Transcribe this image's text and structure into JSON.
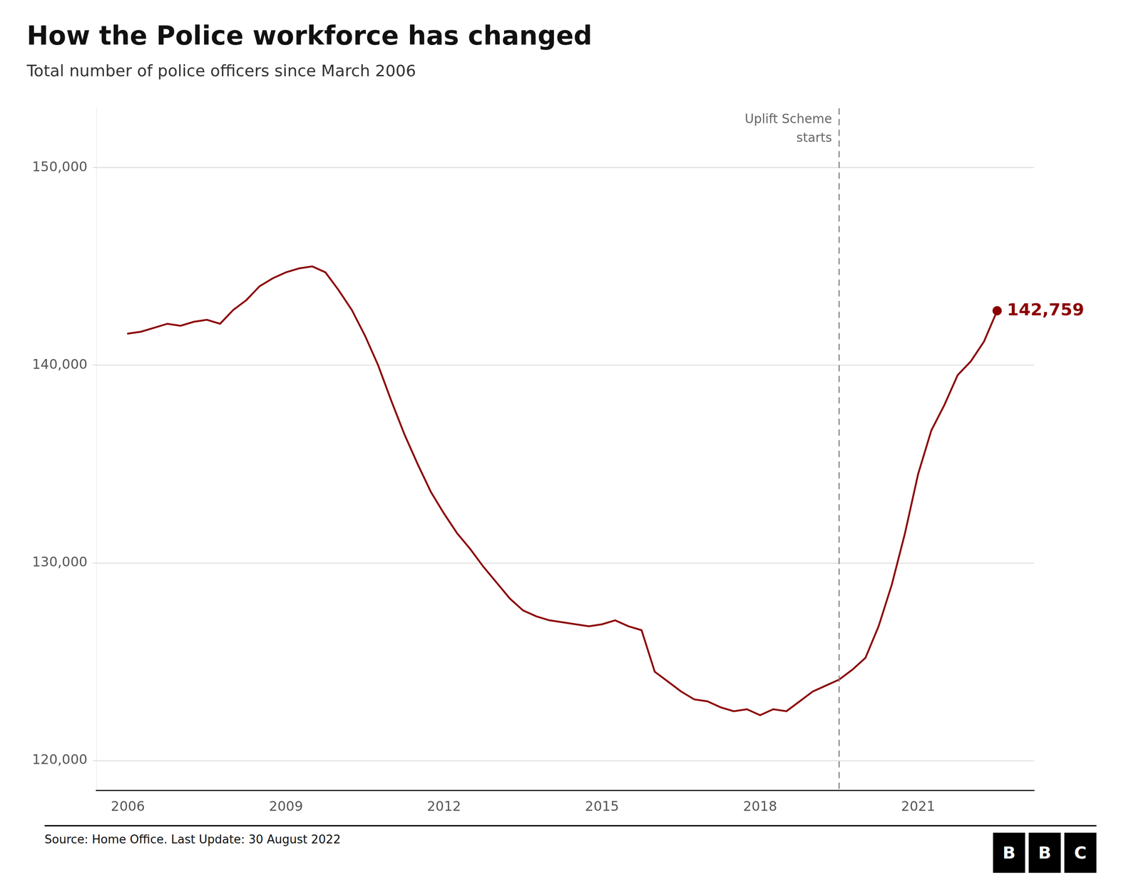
{
  "chart_data": {
    "type": "line",
    "title": "How the Police workforce has changed",
    "subtitle": "Total number of police officers since March 2006",
    "source": "Source: Home Office. Last Update: 30 August 2022",
    "logo": "BBC",
    "color": "#8B0000",
    "x": [
      2006.0,
      2006.25,
      2006.5,
      2006.75,
      2007.0,
      2007.25,
      2007.5,
      2007.75,
      2008.0,
      2008.25,
      2008.5,
      2008.75,
      2009.0,
      2009.25,
      2009.5,
      2009.75,
      2010.0,
      2010.25,
      2010.5,
      2010.75,
      2011.0,
      2011.25,
      2011.5,
      2011.75,
      2012.0,
      2012.25,
      2012.5,
      2012.75,
      2013.0,
      2013.25,
      2013.5,
      2013.75,
      2014.0,
      2014.25,
      2014.5,
      2014.75,
      2015.0,
      2015.25,
      2015.5,
      2015.75,
      2016.0,
      2016.25,
      2016.5,
      2016.75,
      2017.0,
      2017.25,
      2017.5,
      2017.75,
      2018.0,
      2018.25,
      2018.5,
      2018.75,
      2019.0,
      2019.25,
      2019.5,
      2019.75,
      2020.0,
      2020.25,
      2020.5,
      2020.75,
      2021.0,
      2021.25,
      2021.5,
      2021.75,
      2022.0,
      2022.25,
      2022.5
    ],
    "values": [
      141600,
      141700,
      141900,
      142100,
      142000,
      142200,
      142300,
      142100,
      142800,
      143300,
      144000,
      144400,
      144700,
      144900,
      145000,
      144700,
      143800,
      142800,
      141500,
      140000,
      138200,
      136500,
      135000,
      133600,
      132500,
      131500,
      130700,
      129800,
      129000,
      128200,
      127600,
      127300,
      127100,
      127000,
      126900,
      126800,
      126900,
      127100,
      126800,
      126600,
      124500,
      124000,
      123500,
      123100,
      123000,
      122700,
      122500,
      122600,
      122300,
      122600,
      122500,
      123000,
      123500,
      123800,
      124100,
      124600,
      125200,
      126800,
      128900,
      131500,
      134500,
      136700,
      138000,
      139500,
      140200,
      141200,
      142759
    ],
    "annotations": [
      {
        "x": 2019.5,
        "text": "Uplift Scheme\nstarts",
        "line_style": "dashed"
      },
      {
        "x": 2022.5,
        "y": 142759,
        "text": "142,759",
        "marker": "circle"
      }
    ],
    "xlim": [
      2005.4,
      2023.2
    ],
    "xticks": [
      2006,
      2009,
      2012,
      2015,
      2018,
      2021
    ],
    "ylim": [
      118500,
      153000
    ],
    "yticks": [
      {
        "value": 120000,
        "label": "120,000"
      },
      {
        "value": 130000,
        "label": "130,000"
      },
      {
        "value": 140000,
        "label": "140,000"
      },
      {
        "value": 150000,
        "label": "150,000"
      }
    ],
    "grid": "y"
  }
}
